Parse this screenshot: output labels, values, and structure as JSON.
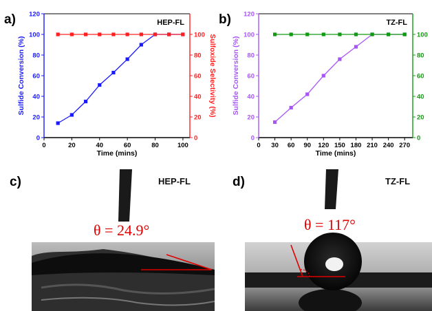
{
  "chart_data": [
    {
      "panel_label": "a)",
      "type": "line",
      "title": "HEP-FL",
      "xlabel": "Time (mins)",
      "ylabel_left": "Sulfide Conversion (%)",
      "ylabel_right": "Sulfoxide Selectivity (%)",
      "xlim": [
        0,
        105
      ],
      "ylim_left": [
        0,
        120
      ],
      "ylim_right": [
        0,
        120
      ],
      "x_ticks": [
        0,
        20,
        40,
        60,
        80,
        100
      ],
      "y_ticks_left": [
        0,
        20,
        40,
        60,
        80,
        100,
        120
      ],
      "y_ticks_right": [
        0,
        20,
        40,
        60,
        80,
        100
      ],
      "left_color": "#1a1aff",
      "right_color": "#ff2020",
      "series": [
        {
          "axis": "left",
          "color": "#1a1aff",
          "x": [
            10,
            20,
            30,
            40,
            50,
            60,
            70,
            80,
            90,
            100
          ],
          "values": [
            14,
            22,
            35,
            51,
            63,
            76,
            90,
            100,
            100,
            100
          ]
        },
        {
          "axis": "right",
          "color": "#ff2020",
          "x": [
            10,
            20,
            30,
            40,
            50,
            60,
            70,
            80,
            90,
            100
          ],
          "values": [
            100,
            100,
            100,
            100,
            100,
            100,
            100,
            100,
            100,
            100
          ]
        }
      ]
    },
    {
      "panel_label": "b)",
      "type": "line",
      "title": "TZ-FL",
      "xlabel": "Time (mins)",
      "ylabel_left": "Sulfide Conversion (%)",
      "ylabel_right": "Sulfoxide Selectivity (%)",
      "xlim": [
        0,
        285
      ],
      "ylim_left": [
        0,
        120
      ],
      "ylim_right": [
        0,
        120
      ],
      "x_ticks": [
        0,
        30,
        60,
        90,
        120,
        150,
        180,
        210,
        240,
        270
      ],
      "y_ticks_left": [
        0,
        20,
        40,
        60,
        80,
        100,
        120
      ],
      "y_ticks_right": [
        0,
        20,
        40,
        60,
        80,
        100
      ],
      "left_color": "#a855f7",
      "right_color": "#139a13",
      "series": [
        {
          "axis": "left",
          "color": "#a855f7",
          "x": [
            30,
            60,
            90,
            120,
            150,
            180,
            210,
            240,
            270
          ],
          "values": [
            15,
            29,
            42,
            60,
            76,
            88,
            100,
            100,
            100
          ]
        },
        {
          "axis": "right",
          "color": "#139a13",
          "x": [
            30,
            60,
            90,
            120,
            150,
            180,
            210,
            240,
            270
          ],
          "values": [
            100,
            100,
            100,
            100,
            100,
            100,
            100,
            100,
            100
          ]
        }
      ]
    }
  ],
  "photos": {
    "c": {
      "panel_label": "c)",
      "sample": "HEP-FL",
      "angle": "θ = 24.9°"
    },
    "d": {
      "panel_label": "d)",
      "sample": "TZ-FL",
      "angle": "θ = 117°"
    }
  }
}
